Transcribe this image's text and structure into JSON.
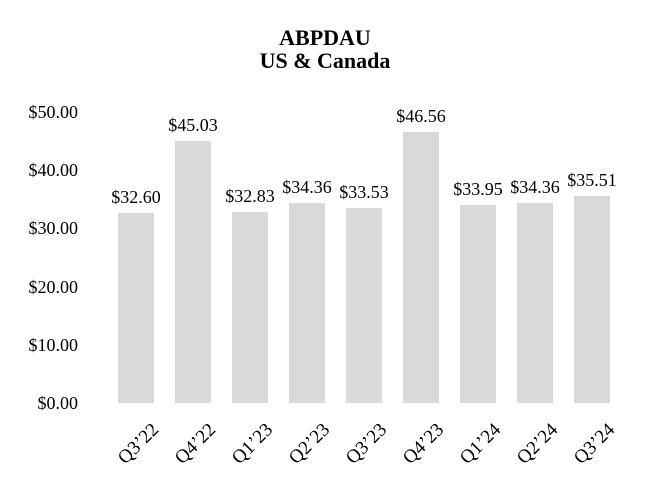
{
  "title": {
    "line1": "ABPDAU",
    "line2": "US & Canada"
  },
  "chart_data": {
    "type": "bar",
    "title": "ABPDAU",
    "subtitle": "US & Canada",
    "categories": [
      "Q3’22",
      "Q4’22",
      "Q1’23",
      "Q2’23",
      "Q3’23",
      "Q4’23",
      "Q1’24",
      "Q2’24",
      "Q3’24"
    ],
    "values": [
      32.6,
      45.03,
      32.83,
      34.36,
      33.53,
      46.56,
      33.95,
      34.36,
      35.51
    ],
    "data_labels": [
      "$32.60",
      "$45.03",
      "$32.83",
      "$34.36",
      "$33.53",
      "$46.56",
      "$33.95",
      "$34.36",
      "$35.51"
    ],
    "y_ticks": [
      {
        "value": 0,
        "label": "$0.00"
      },
      {
        "value": 10,
        "label": "$10.00"
      },
      {
        "value": 20,
        "label": "$20.00"
      },
      {
        "value": 30,
        "label": "$30.00"
      },
      {
        "value": 40,
        "label": "$40.00"
      },
      {
        "value": 50,
        "label": "$50.00"
      }
    ],
    "ylim": [
      0,
      50
    ],
    "xlabel": "",
    "ylabel": "",
    "grid": false,
    "legend": "none",
    "bar_color": "#d9d9d9",
    "text_color": "#000000",
    "background_color": "#ffffff"
  }
}
